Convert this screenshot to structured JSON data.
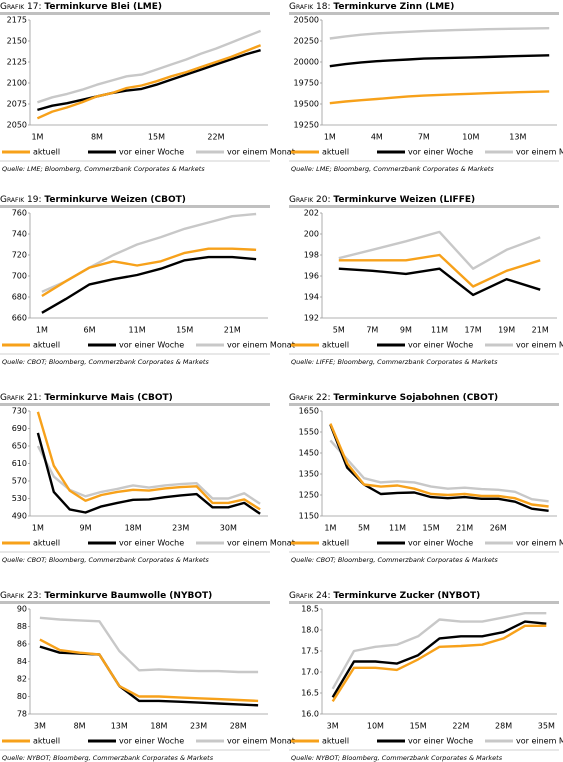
{
  "chart_data": [
    {
      "type": "line",
      "label": "Grafik 17:",
      "title": "Terminkurve Blei (LME)",
      "source": "Quelle: LME; Bloomberg, Commerzbank Corporates & Markets",
      "categories": [
        "1M",
        null,
        null,
        null,
        "8M",
        null,
        null,
        null,
        "15M",
        null,
        null,
        null,
        "22M",
        null,
        null,
        null
      ],
      "ylim": [
        2050,
        2175
      ],
      "yticks": [
        2050,
        2075,
        2100,
        2125,
        2150,
        2175
      ],
      "series": [
        {
          "name": "aktuell",
          "color": "#f7a11a",
          "values": [
            2058,
            2066,
            2071,
            2077,
            2084,
            2088,
            2094,
            2097,
            2102,
            2108,
            2113,
            2119,
            2125,
            2131,
            2138,
            2145
          ]
        },
        {
          "name": "vor einer Woche",
          "color": "#000000",
          "values": [
            2068,
            2073,
            2076,
            2080,
            2084,
            2088,
            2091,
            2093,
            2098,
            2104,
            2110,
            2116,
            2122,
            2128,
            2134,
            2139
          ]
        },
        {
          "name": "vor einem Monat",
          "color": "#c8c8c8",
          "values": [
            2077,
            2083,
            2087,
            2092,
            2098,
            2103,
            2108,
            2110,
            2116,
            2122,
            2128,
            2135,
            2141,
            2148,
            2155,
            2162
          ]
        }
      ]
    },
    {
      "type": "line",
      "label": "Grafik 18:",
      "title": "Terminkurve Zinn (LME)",
      "source": "Quelle: LME; Bloomberg, Commerzbank Corporates & Markets",
      "categories": [
        "1M",
        null,
        null,
        "4M",
        null,
        null,
        "7M",
        null,
        null,
        "10M",
        null,
        null,
        "13M",
        null,
        null
      ],
      "ylim": [
        19250,
        20500
      ],
      "yticks": [
        19250,
        19500,
        19750,
        20000,
        20250,
        20500
      ],
      "series": [
        {
          "name": "aktuell",
          "color": "#f7a11a",
          "values": [
            19510,
            19530,
            19545,
            19560,
            19575,
            19590,
            19600,
            19608,
            19615,
            19622,
            19628,
            19634,
            19640,
            19645,
            19650
          ]
        },
        {
          "name": "vor einer Woche",
          "color": "#000000",
          "values": [
            19950,
            19975,
            19995,
            20010,
            20020,
            20030,
            20040,
            20045,
            20050,
            20055,
            20060,
            20065,
            20070,
            20075,
            20080
          ]
        },
        {
          "name": "vor einem Monat",
          "color": "#c8c8c8",
          "values": [
            20280,
            20305,
            20325,
            20340,
            20350,
            20360,
            20368,
            20374,
            20380,
            20385,
            20390,
            20394,
            20397,
            20400,
            20402
          ]
        }
      ]
    },
    {
      "type": "line",
      "label": "Grafik 19:",
      "title": "Terminkurve Weizen (CBOT)",
      "source": "Quelle: CBOT; Bloomberg, Commerzbank Corporates & Markets",
      "categories": [
        "1M",
        null,
        "6M",
        null,
        "11M",
        null,
        "15M",
        null,
        "21M",
        null
      ],
      "ylim": [
        660,
        760
      ],
      "yticks": [
        660,
        680,
        700,
        720,
        740,
        760
      ],
      "series": [
        {
          "name": "aktuell",
          "color": "#f7a11a",
          "values": [
            681,
            695,
            708,
            714,
            710,
            714,
            722,
            726,
            726,
            725
          ]
        },
        {
          "name": "vor einer Woche",
          "color": "#000000",
          "values": [
            665,
            678,
            692,
            697,
            701,
            707,
            715,
            718,
            718,
            716
          ]
        },
        {
          "name": "vor einem Monat",
          "color": "#c8c8c8",
          "values": [
            685,
            695,
            708,
            720,
            730,
            737,
            745,
            751,
            757,
            759
          ]
        }
      ]
    },
    {
      "type": "line",
      "label": "Grafik 20:",
      "title": "Terminkurve Weizen (LIFFE)",
      "source": "Quelle: LIFFE; Bloomberg, Commerzbank Corporates & Markets",
      "categories": [
        "5M",
        "7M",
        "9M",
        "11M",
        "17M",
        "19M",
        "21M"
      ],
      "ylim": [
        192,
        202
      ],
      "yticks": [
        192,
        194,
        196,
        198,
        200,
        202
      ],
      "series": [
        {
          "name": "aktuell",
          "color": "#f7a11a",
          "values": [
            197.5,
            197.5,
            197.5,
            198.0,
            195.0,
            196.5,
            197.5
          ]
        },
        {
          "name": "vor einer Woche",
          "color": "#000000",
          "values": [
            196.7,
            196.5,
            196.2,
            196.7,
            194.2,
            195.7,
            194.7
          ]
        },
        {
          "name": "vor einem Monat",
          "color": "#c8c8c8",
          "values": [
            197.7,
            198.5,
            199.3,
            200.2,
            196.7,
            198.5,
            199.7
          ]
        }
      ]
    },
    {
      "type": "line",
      "label": "Grafik 21:",
      "title": "Terminkurve Mais (CBOT)",
      "source": "Quelle: CBOT; Bloomberg, Commerzbank Corporates & Markets",
      "categories": [
        "1M",
        null,
        null,
        "9M",
        null,
        null,
        "18M",
        null,
        null,
        "23M",
        null,
        null,
        "30M",
        null,
        null
      ],
      "ylim": [
        490,
        730
      ],
      "yticks": [
        490,
        530,
        570,
        610,
        650,
        690,
        730
      ],
      "series": [
        {
          "name": "aktuell",
          "color": "#f7a11a",
          "values": [
            728,
            605,
            548,
            525,
            538,
            545,
            550,
            548,
            553,
            556,
            558,
            520,
            520,
            528,
            505
          ]
        },
        {
          "name": "vor einer Woche",
          "color": "#000000",
          "values": [
            680,
            545,
            505,
            498,
            512,
            520,
            527,
            528,
            533,
            537,
            540,
            510,
            510,
            520,
            495
          ]
        },
        {
          "name": "vor einem Monat",
          "color": "#c8c8c8",
          "values": [
            650,
            580,
            550,
            535,
            545,
            552,
            560,
            555,
            560,
            563,
            565,
            530,
            530,
            542,
            518
          ]
        }
      ]
    },
    {
      "type": "line",
      "label": "Grafik 22:",
      "title": "Terminkurve Sojabohnen (CBOT)",
      "source": "Quelle: CBOT; Bloomberg, Commerzbank Corporates & Markets",
      "categories": [
        "1M",
        null,
        "5M",
        null,
        "11M",
        null,
        "15M",
        null,
        "21M",
        null,
        "26M",
        null,
        null,
        null
      ],
      "ylim": [
        1150,
        1650
      ],
      "yticks": [
        1150,
        1250,
        1350,
        1450,
        1550,
        1650
      ],
      "series": [
        {
          "name": "aktuell",
          "color": "#f7a11a",
          "values": [
            1590,
            1400,
            1300,
            1290,
            1295,
            1280,
            1255,
            1250,
            1255,
            1245,
            1245,
            1235,
            1205,
            1195
          ]
        },
        {
          "name": "vor einer Woche",
          "color": "#000000",
          "values": [
            1585,
            1380,
            1300,
            1255,
            1260,
            1262,
            1240,
            1235,
            1240,
            1232,
            1232,
            1218,
            1185,
            1175
          ]
        },
        {
          "name": "vor einem Monat",
          "color": "#c8c8c8",
          "values": [
            1510,
            1420,
            1330,
            1310,
            1315,
            1310,
            1290,
            1280,
            1285,
            1278,
            1275,
            1265,
            1230,
            1220
          ]
        }
      ]
    },
    {
      "type": "line",
      "label": "Grafik 23:",
      "title": "Terminkurve Baumwolle (NYBOT)",
      "source": "Quelle: NYBOT; Bloomberg, Commerzbank Corporates & Markets",
      "categories": [
        "3M",
        null,
        "8M",
        null,
        "13M",
        null,
        "18M",
        null,
        "23M",
        null,
        "28M",
        null
      ],
      "ylim": [
        78,
        90
      ],
      "yticks": [
        78,
        80,
        82,
        84,
        86,
        88,
        90
      ],
      "series": [
        {
          "name": "aktuell",
          "color": "#f7a11a",
          "values": [
            86.5,
            85.3,
            85.0,
            84.8,
            81.2,
            80.0,
            80.0,
            79.9,
            79.8,
            79.7,
            79.6,
            79.5
          ]
        },
        {
          "name": "vor einer Woche",
          "color": "#000000",
          "values": [
            85.7,
            85.0,
            84.9,
            84.8,
            81.2,
            79.5,
            79.5,
            79.4,
            79.3,
            79.2,
            79.1,
            79.0
          ]
        },
        {
          "name": "vor einem Monat",
          "color": "#c8c8c8",
          "values": [
            89.0,
            88.8,
            88.7,
            88.6,
            85.2,
            83.0,
            83.1,
            83.0,
            82.9,
            82.9,
            82.8,
            82.8
          ]
        }
      ]
    },
    {
      "type": "line",
      "label": "Grafik 24:",
      "title": "Terminkurve Zucker (NYBOT)",
      "source": "Quelle: NYBOT; Bloomberg, Commerzbank Corporates & Markets",
      "categories": [
        "3M",
        null,
        "10M",
        null,
        "15M",
        null,
        "22M",
        null,
        "28M",
        null,
        "35M"
      ],
      "ylim": [
        16,
        18.5
      ],
      "yticks": [
        {
          "value": 16,
          "label": "16.0"
        },
        16.5,
        {
          "value": 17,
          "label": "17.0"
        },
        17.5,
        {
          "value": 18,
          "label": "18.0"
        },
        18.5
      ],
      "series": [
        {
          "name": "aktuell",
          "color": "#f7a11a",
          "values": [
            16.3,
            17.1,
            17.1,
            17.05,
            17.3,
            17.6,
            17.62,
            17.65,
            17.8,
            18.1,
            18.1
          ]
        },
        {
          "name": "vor einer Woche",
          "color": "#000000",
          "values": [
            16.4,
            17.25,
            17.25,
            17.2,
            17.4,
            17.8,
            17.85,
            17.85,
            17.95,
            18.2,
            18.15
          ]
        },
        {
          "name": "vor einem Monat",
          "color": "#c8c8c8",
          "values": [
            16.6,
            17.5,
            17.6,
            17.65,
            17.85,
            18.25,
            18.2,
            18.2,
            18.3,
            18.4,
            18.4
          ]
        }
      ]
    }
  ]
}
